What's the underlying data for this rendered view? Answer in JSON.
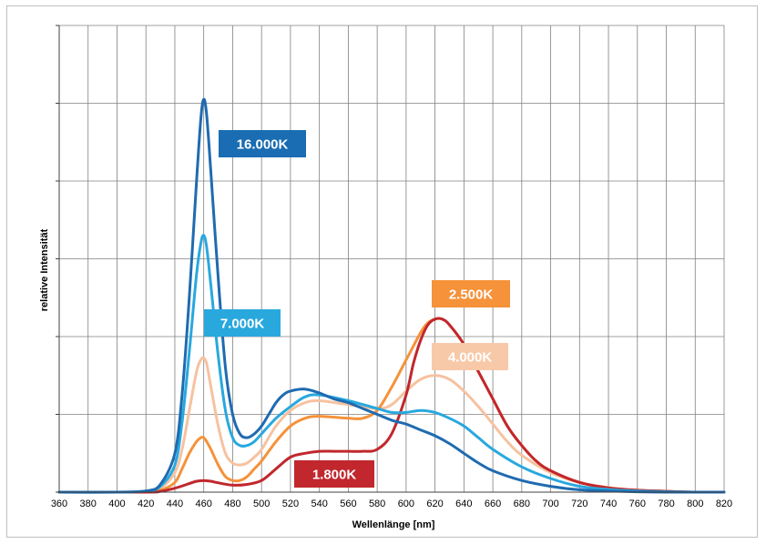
{
  "chart_data": {
    "type": "line",
    "title": "",
    "xlabel": "Wellenlänge [nm]",
    "ylabel": "relative Intensität",
    "xlim": [
      360,
      820
    ],
    "ylim": [
      0,
      1.2
    ],
    "x_ticks": [
      360,
      380,
      400,
      420,
      440,
      460,
      480,
      500,
      520,
      540,
      560,
      580,
      600,
      620,
      640,
      660,
      680,
      700,
      720,
      740,
      760,
      780,
      800,
      820
    ],
    "x_tick_labels": [
      "360",
      "380",
      "400",
      "420",
      "440",
      "460",
      "480",
      "500",
      "520",
      "540",
      "560",
      "580",
      "600",
      "620",
      "640",
      "660",
      "680",
      "700",
      "720",
      "740",
      "760",
      "780",
      "800",
      "820"
    ],
    "y_gridlines": [
      0,
      0.2,
      0.4,
      0.6,
      0.8,
      1.0,
      1.2
    ],
    "y_tick_labels": [],
    "grid": true,
    "series": [
      {
        "name": "16.000K",
        "color": "#1f6bb0",
        "x": [
          360,
          400,
          420,
          430,
          440,
          445,
          450,
          455,
          458,
          460,
          462,
          465,
          470,
          475,
          480,
          485,
          490,
          495,
          500,
          505,
          510,
          515,
          520,
          530,
          540,
          550,
          560,
          570,
          580,
          590,
          600,
          610,
          620,
          630,
          640,
          650,
          660,
          680,
          700,
          720,
          740,
          760,
          780,
          800,
          820
        ],
        "y": [
          0,
          0,
          0.003,
          0.02,
          0.1,
          0.25,
          0.5,
          0.8,
          0.96,
          1.01,
          0.97,
          0.82,
          0.55,
          0.32,
          0.2,
          0.15,
          0.14,
          0.15,
          0.17,
          0.2,
          0.23,
          0.25,
          0.26,
          0.265,
          0.255,
          0.24,
          0.23,
          0.215,
          0.2,
          0.185,
          0.175,
          0.16,
          0.145,
          0.125,
          0.1,
          0.075,
          0.055,
          0.03,
          0.015,
          0.006,
          0.003,
          0.001,
          0,
          0,
          0
        ]
      },
      {
        "name": "7.000K",
        "color": "#29a8de",
        "x": [
          360,
          400,
          420,
          430,
          440,
          445,
          450,
          455,
          458,
          460,
          462,
          465,
          470,
          475,
          480,
          485,
          490,
          495,
          500,
          510,
          520,
          530,
          540,
          560,
          580,
          590,
          600,
          610,
          620,
          630,
          640,
          650,
          660,
          680,
          700,
          720,
          740,
          760,
          780,
          800,
          820
        ],
        "y": [
          0,
          0,
          0.003,
          0.015,
          0.07,
          0.18,
          0.36,
          0.56,
          0.64,
          0.66,
          0.63,
          0.53,
          0.35,
          0.21,
          0.14,
          0.12,
          0.12,
          0.13,
          0.15,
          0.19,
          0.22,
          0.245,
          0.25,
          0.235,
          0.215,
          0.205,
          0.205,
          0.21,
          0.205,
          0.19,
          0.17,
          0.14,
          0.11,
          0.065,
          0.035,
          0.015,
          0.007,
          0.003,
          0.001,
          0,
          0
        ]
      },
      {
        "name": "4.000K",
        "color": "#f6c2a0",
        "x": [
          360,
          400,
          420,
          430,
          440,
          445,
          450,
          455,
          458,
          460,
          462,
          465,
          470,
          475,
          480,
          485,
          490,
          495,
          500,
          510,
          520,
          530,
          540,
          560,
          580,
          590,
          600,
          610,
          620,
          630,
          640,
          650,
          660,
          670,
          680,
          700,
          720,
          740,
          760,
          780,
          800,
          820
        ],
        "y": [
          0,
          0,
          0.002,
          0.01,
          0.05,
          0.11,
          0.21,
          0.31,
          0.34,
          0.345,
          0.33,
          0.27,
          0.17,
          0.1,
          0.075,
          0.07,
          0.075,
          0.09,
          0.11,
          0.17,
          0.21,
          0.23,
          0.235,
          0.225,
          0.215,
          0.225,
          0.26,
          0.29,
          0.3,
          0.29,
          0.26,
          0.22,
          0.175,
          0.13,
          0.095,
          0.05,
          0.025,
          0.012,
          0.005,
          0.002,
          0,
          0
        ]
      },
      {
        "name": "2.500K",
        "color": "#f5923a",
        "x": [
          360,
          400,
          420,
          430,
          440,
          445,
          450,
          455,
          458,
          460,
          462,
          465,
          470,
          475,
          480,
          485,
          490,
          495,
          500,
          510,
          520,
          530,
          540,
          560,
          570,
          580,
          590,
          600,
          610,
          615,
          620,
          625,
          630,
          640,
          650,
          660,
          670,
          680,
          690,
          700,
          720,
          740,
          760,
          780,
          800,
          820
        ],
        "y": [
          0,
          0,
          0.001,
          0.005,
          0.025,
          0.06,
          0.1,
          0.13,
          0.14,
          0.14,
          0.13,
          0.11,
          0.07,
          0.04,
          0.03,
          0.03,
          0.04,
          0.06,
          0.08,
          0.13,
          0.17,
          0.19,
          0.195,
          0.19,
          0.19,
          0.21,
          0.27,
          0.34,
          0.41,
          0.435,
          0.445,
          0.445,
          0.43,
          0.38,
          0.31,
          0.24,
          0.17,
          0.12,
          0.08,
          0.055,
          0.025,
          0.011,
          0.005,
          0.002,
          0,
          0
        ]
      },
      {
        "name": "1.800K",
        "color": "#c1272d",
        "x": [
          360,
          420,
          430,
          440,
          450,
          455,
          460,
          465,
          470,
          480,
          490,
          500,
          510,
          520,
          530,
          540,
          550,
          560,
          570,
          580,
          590,
          600,
          605,
          610,
          615,
          620,
          625,
          630,
          640,
          650,
          660,
          670,
          680,
          690,
          700,
          720,
          740,
          760,
          780,
          800,
          820
        ],
        "y": [
          0,
          0,
          0.002,
          0.01,
          0.022,
          0.028,
          0.03,
          0.028,
          0.024,
          0.018,
          0.02,
          0.03,
          0.06,
          0.09,
          0.1,
          0.105,
          0.105,
          0.105,
          0.105,
          0.11,
          0.15,
          0.25,
          0.33,
          0.39,
          0.43,
          0.445,
          0.445,
          0.43,
          0.38,
          0.31,
          0.24,
          0.17,
          0.12,
          0.08,
          0.055,
          0.025,
          0.011,
          0.005,
          0.002,
          0,
          0
        ]
      }
    ],
    "labels": [
      {
        "text": "16.000K",
        "series": "16.000K",
        "bg": "#1a6db2",
        "fg": "#ffffff"
      },
      {
        "text": "7.000K",
        "series": "7.000K",
        "bg": "#29a8de",
        "fg": "#ffffff"
      },
      {
        "text": "2.500K",
        "series": "2.500K",
        "bg": "#f5923a",
        "fg": "#ffffff"
      },
      {
        "text": "4.000K",
        "series": "4.000K",
        "bg": "#f8c9a8",
        "fg": "#000000"
      },
      {
        "text": "1.800K",
        "series": "1.800K",
        "bg": "#c1272d",
        "fg": "#ffffff"
      }
    ]
  }
}
